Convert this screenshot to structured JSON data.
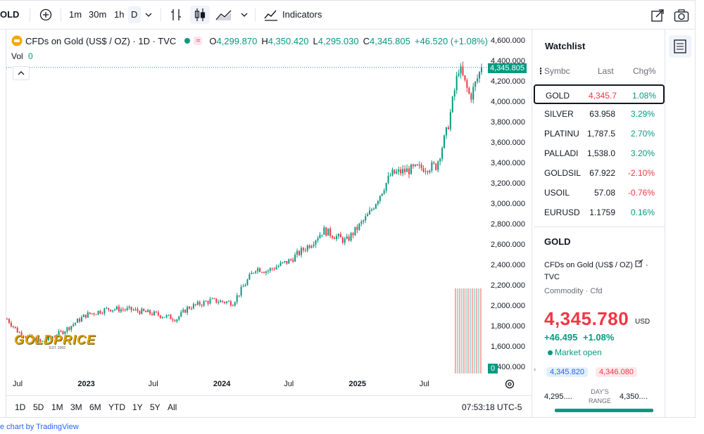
{
  "toolbar": {
    "symbol": "OLD",
    "intervals": [
      "1m",
      "30m",
      "1h",
      "D"
    ],
    "indicators_label": "Indicators"
  },
  "legend": {
    "title": "CFDs on Gold (US$ / OZ) · 1D · TVC",
    "open_label": "O",
    "open": "4,299.870",
    "high_label": "H",
    "high": "4,350.420",
    "low_label": "L",
    "low": "4,295.030",
    "close_label": "C",
    "close": "4,345.805",
    "change": "+46.520 (+1.08%)",
    "vol_label": "Vol",
    "vol_value": "0"
  },
  "watermark": {
    "text": "GOLDPRICE",
    "sub": "EST. 2002"
  },
  "price_tag": "4,345.805",
  "vol_tag": "0",
  "chart_data": {
    "type": "candlestick",
    "title": "CFDs on Gold (US$ / OZ) · 1D · TVC",
    "ylim": [
      1400,
      4600
    ],
    "y_ticks": [
      "4,600.000",
      "4,400.000",
      "4,200.000",
      "4,000.000",
      "3,800.000",
      "3,600.000",
      "3,400.000",
      "3,200.000",
      "3,000.000",
      "2,800.000",
      "2,600.000",
      "2,400.000",
      "2,200.000",
      "2,000.000",
      "1,800.000",
      "1,600.000",
      "1,400.000"
    ],
    "x_ticks": [
      "Jul",
      "2023",
      "Jul",
      "2024",
      "Jul",
      "2025",
      "Jul"
    ],
    "x": [
      "2022-06",
      "2022-07",
      "2022-09",
      "2022-11",
      "2023-01",
      "2023-03",
      "2023-05",
      "2023-07",
      "2023-09",
      "2023-10",
      "2023-12",
      "2024-02",
      "2024-04",
      "2024-05",
      "2024-07",
      "2024-09",
      "2024-10",
      "2024-12",
      "2025-02",
      "2025-04",
      "2025-06",
      "2025-08",
      "2025-09",
      "2025-10",
      "2025-11",
      "2025-12"
    ],
    "close": [
      1880,
      1750,
      1650,
      1760,
      1920,
      1980,
      1970,
      1930,
      1880,
      1990,
      2060,
      2040,
      2380,
      2350,
      2450,
      2630,
      2750,
      2640,
      2900,
      3300,
      3350,
      3380,
      3750,
      4350,
      4050,
      4345.805
    ],
    "last_price": 4345.805
  },
  "bottombar": {
    "ranges": [
      "1D",
      "5D",
      "1M",
      "3M",
      "6M",
      "YTD",
      "1Y",
      "5Y",
      "All"
    ],
    "time": "07:53:18 UTC-5"
  },
  "watchlist": {
    "title": "Watchlist",
    "columns": [
      "Symbc",
      "Last",
      "Chg%"
    ],
    "rows": [
      {
        "sym": "GOLD",
        "last": "4,345.7",
        "chg": "1.08%",
        "dir": "up",
        "selected": true
      },
      {
        "sym": "SILVER",
        "last": "63.958",
        "chg": "3.29%",
        "dir": "up"
      },
      {
        "sym": "PLATINU",
        "last": "1,787.5",
        "chg": "2.70%",
        "dir": "up"
      },
      {
        "sym": "PALLADI",
        "last": "1,538.0",
        "chg": "3.20%",
        "dir": "up"
      },
      {
        "sym": "GOLDSIL",
        "last": "67.922",
        "chg": "-2.10%",
        "dir": "down"
      },
      {
        "sym": "USOIL",
        "last": "57.08",
        "chg": "-0.76%",
        "dir": "down"
      },
      {
        "sym": "EURUSD",
        "last": "1.1759",
        "chg": "0.16%",
        "dir": "up"
      }
    ]
  },
  "details": {
    "symbol": "GOLD",
    "desc": "CFDs on Gold (US$ / OZ)",
    "exchange": "TVC",
    "type": "Commodity · Cfd",
    "price": "4,345.780",
    "currency": "USD",
    "change": "+46.495",
    "change_pct": "+1.08%",
    "status": "Market open",
    "bid": "4,345.820",
    "ask": "4,346.080",
    "low": "4,295....",
    "range_label_1": "DAY'S",
    "range_label_2": "RANGE",
    "high": "4,350...."
  },
  "footer": "e chart by TradingView"
}
